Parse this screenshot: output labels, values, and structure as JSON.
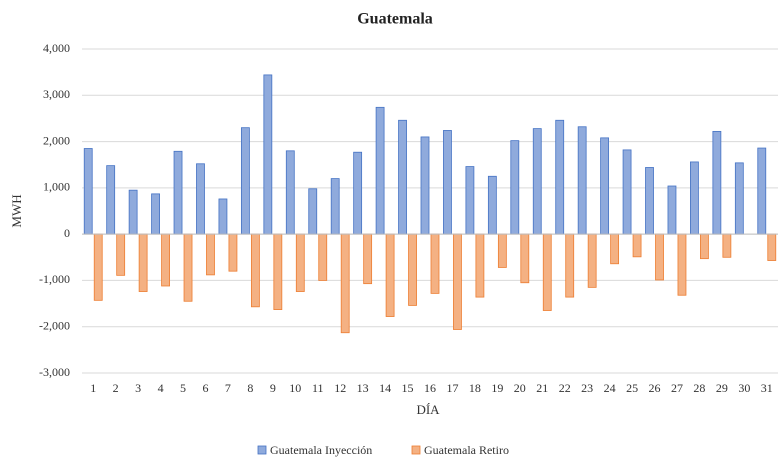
{
  "chart_data": {
    "type": "bar",
    "title": "Guatemala",
    "x_label": "DÍA",
    "y_label": "MWH",
    "categories": [
      "1",
      "2",
      "3",
      "4",
      "5",
      "6",
      "7",
      "8",
      "9",
      "10",
      "11",
      "12",
      "13",
      "14",
      "15",
      "16",
      "17",
      "18",
      "19",
      "20",
      "21",
      "22",
      "23",
      "24",
      "25",
      "26",
      "27",
      "28",
      "29",
      "30",
      "31"
    ],
    "series": [
      {
        "name": "Guatemala Inyección",
        "color": "#8faadc",
        "values": [
          1850,
          1480,
          950,
          870,
          1790,
          1520,
          760,
          2300,
          3440,
          1800,
          980,
          1200,
          1770,
          2740,
          2460,
          2100,
          2240,
          1460,
          1250,
          2020,
          2280,
          2460,
          2320,
          2080,
          1820,
          1440,
          1040,
          1560,
          2220,
          1540,
          1860
        ]
      },
      {
        "name": "Guatemala Retiro",
        "color": "#f4b183",
        "values": [
          -1430,
          -890,
          -1240,
          -1120,
          -1450,
          -880,
          -800,
          -1570,
          -1630,
          -1240,
          -1000,
          -2130,
          -1070,
          -1780,
          -1540,
          -1280,
          -2060,
          -1360,
          -720,
          -1050,
          -1650,
          -1360,
          -1150,
          -640,
          -490,
          -990,
          -1320,
          -530,
          -500,
          null,
          -570
        ]
      }
    ],
    "ylim": [
      -3000,
      4000
    ],
    "yticks": [
      {
        "value": -3000,
        "label": "-3,000"
      },
      {
        "value": -2000,
        "label": "-2,000"
      },
      {
        "value": -1000,
        "label": "-1,000"
      },
      0,
      {
        "value": 1000,
        "label": "1,000"
      },
      {
        "value": 2000,
        "label": "2,000"
      },
      {
        "value": 3000,
        "label": "3,000"
      },
      {
        "value": 4000,
        "label": "4,000"
      }
    ],
    "grid": true,
    "legend": "bottom"
  }
}
